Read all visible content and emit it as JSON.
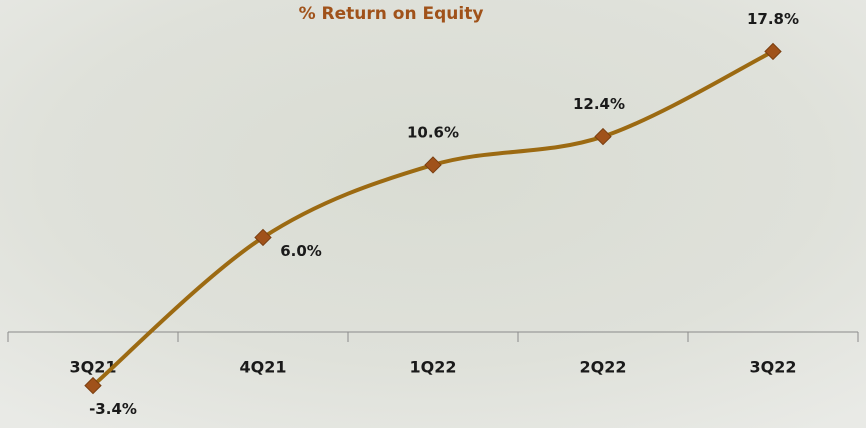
{
  "chart_data": {
    "type": "line",
    "title": "% Return on Equity",
    "categories": [
      "3Q21",
      "4Q21",
      "1Q22",
      "2Q22",
      "3Q22"
    ],
    "series": [
      {
        "name": "% Return on Equity",
        "color": "#9c6a12",
        "marker_color": "#a0521a",
        "values": [
          -3.4,
          6.0,
          10.6,
          12.4,
          17.8
        ],
        "value_labels": [
          "-3.4%",
          "6.0%",
          "10.6%",
          "12.4%",
          "17.8%"
        ]
      }
    ]
  }
}
